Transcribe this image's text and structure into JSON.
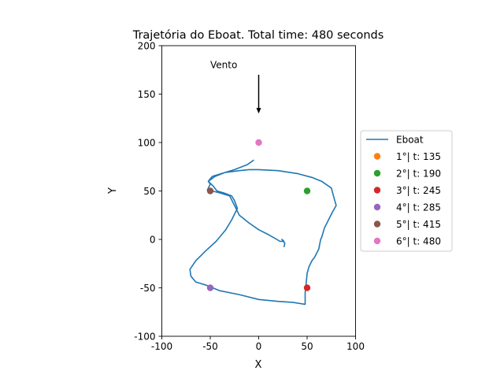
{
  "chart_data": {
    "type": "line",
    "title": "Trajetória do Eboat. Total time: 480 seconds",
    "xlabel": "X",
    "ylabel": "Y",
    "xlim": [
      -100,
      100
    ],
    "ylim": [
      -100,
      200
    ],
    "xticks": [
      -100,
      -50,
      0,
      50,
      100
    ],
    "yticks": [
      -100,
      -50,
      0,
      50,
      100,
      150,
      200
    ],
    "grid": false,
    "legend_position": "center-right",
    "annotation": {
      "text": "Vento",
      "text_pos": [
        -50,
        180
      ],
      "arrow_from": [
        0,
        170
      ],
      "arrow_to": [
        0,
        130
      ]
    },
    "series": [
      {
        "name": "Eboat",
        "kind": "line",
        "color": "#1f77b4",
        "x": [
          -5,
          -12,
          -25,
          -35,
          -48,
          -52,
          -47,
          -43,
          -36,
          -28,
          -25,
          -22,
          -28,
          -34,
          -44,
          -55,
          -65,
          -71,
          -70,
          -65,
          -55,
          -40,
          -20,
          0,
          20,
          35,
          48,
          48,
          49,
          50,
          52,
          55,
          58,
          62,
          64,
          65,
          68,
          72,
          76,
          80,
          78,
          75,
          65,
          55,
          40,
          20,
          0,
          -10,
          -20,
          -35,
          -45,
          -52,
          -50,
          -53,
          -50,
          -48,
          -40,
          -30,
          -25,
          -20,
          -10,
          0,
          10,
          17,
          22,
          26,
          24,
          27,
          26
        ],
        "y": [
          82,
          77,
          72,
          69,
          65,
          60,
          55,
          50,
          48,
          45,
          40,
          32,
          20,
          10,
          -2,
          -12,
          -22,
          -31,
          -38,
          -44,
          -47,
          -53,
          -57,
          -62,
          -64,
          -65,
          -67,
          -55,
          -45,
          -35,
          -28,
          -22,
          -18,
          -10,
          0,
          2,
          12,
          20,
          28,
          35,
          42,
          53,
          60,
          64,
          68,
          71,
          72,
          72,
          71,
          69,
          65,
          60,
          57,
          51,
          50,
          50,
          48,
          45,
          35,
          25,
          17,
          10,
          5,
          1,
          -2,
          -2,
          0,
          -4,
          -8
        ]
      },
      {
        "name": "1°| t: 135",
        "kind": "marker",
        "color": "#ff7f0e",
        "x": [],
        "y": []
      },
      {
        "name": "2°| t: 190",
        "kind": "marker",
        "color": "#2ca02c",
        "x": [
          50
        ],
        "y": [
          50
        ]
      },
      {
        "name": "3°| t: 245",
        "kind": "marker",
        "color": "#d62728",
        "x": [
          50
        ],
        "y": [
          -50
        ]
      },
      {
        "name": "4°| t: 285",
        "kind": "marker",
        "color": "#9467bd",
        "x": [
          -50
        ],
        "y": [
          -50
        ]
      },
      {
        "name": "5°| t: 415",
        "kind": "marker",
        "color": "#8c564b",
        "x": [
          -50
        ],
        "y": [
          50
        ]
      },
      {
        "name": "6°| t: 480",
        "kind": "marker",
        "color": "#e377c2",
        "x": [
          0
        ],
        "y": [
          100
        ]
      }
    ]
  }
}
